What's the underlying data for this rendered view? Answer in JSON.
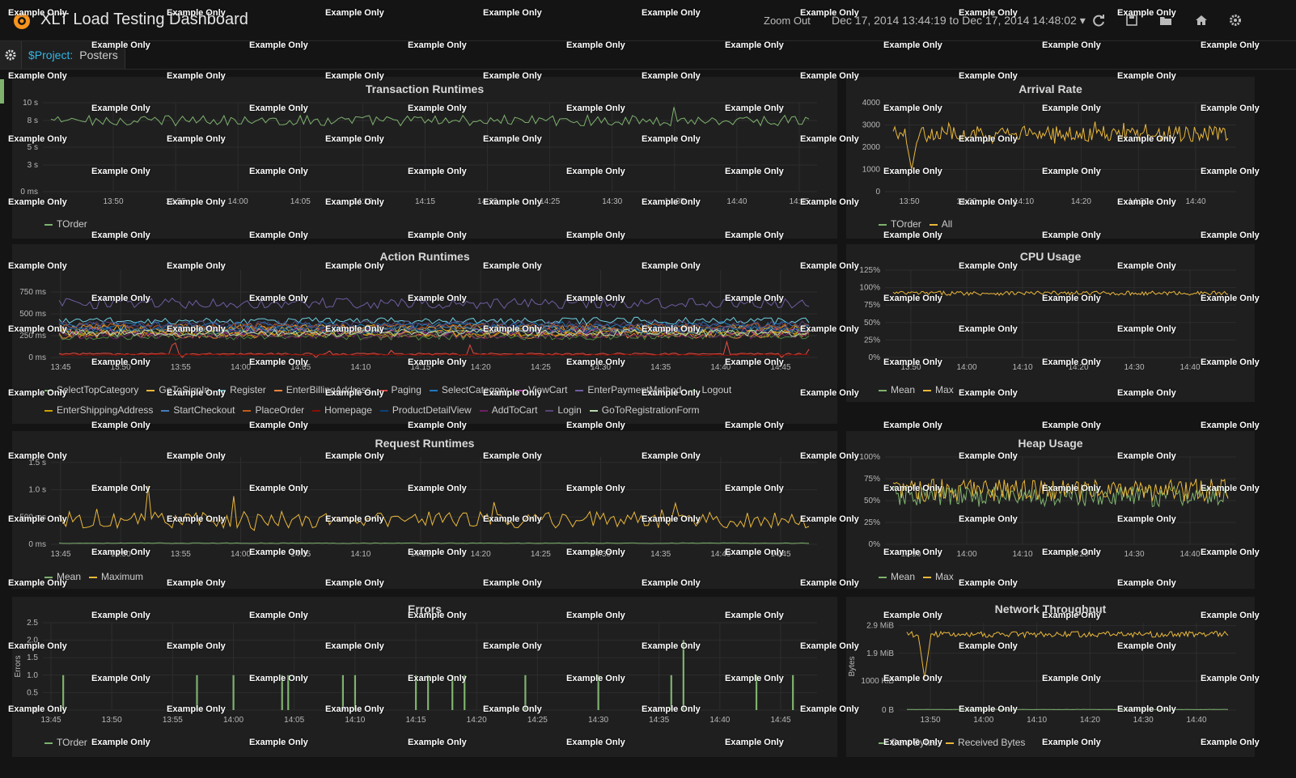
{
  "header": {
    "title": "XLT Load Testing Dashboard",
    "zoom_out": "Zoom Out",
    "time_range": "Dec 17, 2014 13:44:19 to Dec 17, 2014 14:48:02",
    "icons": [
      "refresh-icon",
      "save-icon",
      "open-folder-icon",
      "home-icon",
      "settings-icon"
    ]
  },
  "templating": {
    "var_name": "$Project:",
    "var_value": "Posters"
  },
  "watermark": "Example Only",
  "colors": {
    "green": "#7eb26d",
    "yellow": "#eab839",
    "cyan": "#6ed0e0",
    "orange": "#ef843c",
    "red": "#e24d42",
    "blue": "#1f78c1",
    "pink": "#ba43a9",
    "violet": "#705da0",
    "lime": "#508642",
    "gold": "#cca300",
    "darkblue": "#447ebc",
    "rust": "#c15c17",
    "darkred": "#890f02",
    "navy": "#0a437c",
    "purple": "#6d1f62",
    "indigo": "#584477",
    "lightgreen": "#b7dbab"
  },
  "panels": {
    "transaction_runtimes": {
      "title": "Transaction Runtimes"
    },
    "arrival_rate": {
      "title": "Arrival Rate"
    },
    "action_runtimes": {
      "title": "Action Runtimes"
    },
    "cpu_usage": {
      "title": "CPU Usage"
    },
    "request_runtimes": {
      "title": "Request Runtimes"
    },
    "heap_usage": {
      "title": "Heap Usage"
    },
    "errors": {
      "title": "Errors"
    },
    "network_throughput": {
      "title": "Network Throughput"
    }
  },
  "chart_data": [
    {
      "id": "transaction_runtimes",
      "type": "line",
      "title": "Transaction Runtimes",
      "x_ticks": [
        "13:50",
        "13:55",
        "14:00",
        "14:05",
        "14:10",
        "14:15",
        "14:20",
        "14:25",
        "14:30",
        "14:35",
        "14:40",
        "14:45"
      ],
      "y_ticks": [
        "0 ms",
        "3 s",
        "5 s",
        "8 s",
        "10 s"
      ],
      "ylim": [
        0,
        10
      ],
      "series": [
        {
          "name": "TOrder",
          "color": "#7eb26d",
          "mean": 8,
          "noise": 0.6,
          "spikes": 0.7
        }
      ],
      "legend": [
        {
          "name": "TOrder",
          "color": "#7eb26d"
        }
      ]
    },
    {
      "id": "arrival_rate",
      "type": "line",
      "title": "Arrival Rate",
      "x_ticks": [
        "13:50",
        "14:00",
        "14:10",
        "14:20",
        "14:30",
        "14:40"
      ],
      "y_ticks": [
        "0",
        "1000",
        "2000",
        "3000",
        "4000"
      ],
      "ylim": [
        0,
        4000
      ],
      "series": [
        {
          "name": "All",
          "color": "#eab839",
          "mean": 2600,
          "noise": 350,
          "spikes": 250,
          "dip": 1000
        }
      ],
      "legend": [
        {
          "name": "TOrder",
          "color": "#7eb26d"
        },
        {
          "name": "All",
          "color": "#eab839"
        }
      ]
    },
    {
      "id": "action_runtimes",
      "type": "line",
      "title": "Action Runtimes",
      "x_ticks": [
        "13:45",
        "13:50",
        "13:55",
        "14:00",
        "14:05",
        "14:10",
        "14:15",
        "14:20",
        "14:25",
        "14:30",
        "14:35",
        "14:40",
        "14:45"
      ],
      "y_ticks": [
        "0 ms",
        "250 ms",
        "500 ms",
        "750 ms"
      ],
      "ylim": [
        0,
        1000
      ],
      "series": [
        {
          "name": "SelectTopCategory",
          "color": "#7eb26d",
          "mean": 300,
          "noise": 40
        },
        {
          "name": "GoToSignIn",
          "color": "#eab839",
          "mean": 330,
          "noise": 50
        },
        {
          "name": "Register",
          "color": "#6ed0e0",
          "mean": 420,
          "noise": 40
        },
        {
          "name": "EnterBillingAddress",
          "color": "#ef843c",
          "mean": 260,
          "noise": 40
        },
        {
          "name": "Paging",
          "color": "#e24d42",
          "mean": 40,
          "noise": 10,
          "spikes": 150
        },
        {
          "name": "SelectCategory",
          "color": "#1f78c1",
          "mean": 370,
          "noise": 40
        },
        {
          "name": "ViewCart",
          "color": "#ba43a9",
          "mean": 300,
          "noise": 40
        },
        {
          "name": "EnterPaymentMethod",
          "color": "#705da0",
          "mean": 620,
          "noise": 60
        },
        {
          "name": "Logout",
          "color": "#508642",
          "mean": 240,
          "noise": 40
        },
        {
          "name": "EnterShippingAddress",
          "color": "#cca300",
          "mean": 280,
          "noise": 40
        },
        {
          "name": "StartCheckout",
          "color": "#447ebc",
          "mean": 330,
          "noise": 40
        },
        {
          "name": "PlaceOrder",
          "color": "#c15c17",
          "mean": 350,
          "noise": 40
        },
        {
          "name": "Homepage",
          "color": "#890f02",
          "mean": 30,
          "noise": 8
        },
        {
          "name": "ProductDetailView",
          "color": "#0a437c",
          "mean": 310,
          "noise": 40
        },
        {
          "name": "AddToCart",
          "color": "#6d1f62",
          "mean": 250,
          "noise": 40
        },
        {
          "name": "Login",
          "color": "#584477",
          "mean": 380,
          "noise": 40
        },
        {
          "name": "GoToRegistrationForm",
          "color": "#b7dbab",
          "mean": 280,
          "noise": 40
        }
      ],
      "legend_rows": [
        [
          "SelectTopCategory",
          "GoToSignIn",
          "Register",
          "EnterBillingAddress",
          "Paging",
          "SelectCategory",
          "ViewCart",
          "EnterPaymentMethod",
          "Logout"
        ],
        [
          "EnterShippingAddress",
          "StartCheckout",
          "PlaceOrder",
          "Homepage",
          "ProductDetailView",
          "AddToCart",
          "Login",
          "GoToRegistrationForm"
        ]
      ]
    },
    {
      "id": "cpu_usage",
      "type": "line",
      "title": "CPU Usage",
      "x_ticks": [
        "13:50",
        "14:00",
        "14:10",
        "14:20",
        "14:30",
        "14:40"
      ],
      "y_ticks": [
        "0%",
        "25%",
        "50%",
        "75%",
        "100%",
        "125%"
      ],
      "ylim": [
        0,
        125
      ],
      "series": [
        {
          "name": "Max",
          "color": "#eab839",
          "mean": 92,
          "noise": 3
        }
      ],
      "legend": [
        {
          "name": "Mean",
          "color": "#7eb26d"
        },
        {
          "name": "Max",
          "color": "#eab839"
        }
      ]
    },
    {
      "id": "request_runtimes",
      "type": "line",
      "title": "Request Runtimes",
      "x_ticks": [
        "13:45",
        "13:50",
        "13:55",
        "14:00",
        "14:05",
        "14:10",
        "14:15",
        "14:20",
        "14:25",
        "14:30",
        "14:35",
        "14:40",
        "14:45"
      ],
      "y_ticks": [
        "0 ms",
        "500 ms",
        "1.0 s",
        "1.5 s"
      ],
      "ylim": [
        0,
        1.6
      ],
      "series": [
        {
          "name": "Mean",
          "color": "#7eb26d",
          "mean": 0.02,
          "noise": 0.005
        },
        {
          "name": "Maximum",
          "color": "#eab839",
          "mean": 0.45,
          "noise": 0.15,
          "spikes": 0.35
        }
      ],
      "legend": [
        {
          "name": "Mean",
          "color": "#7eb26d"
        },
        {
          "name": "Maximum",
          "color": "#eab839"
        }
      ]
    },
    {
      "id": "heap_usage",
      "type": "line",
      "title": "Heap Usage",
      "x_ticks": [
        "13:50",
        "14:00",
        "14:10",
        "14:20",
        "14:30",
        "14:40"
      ],
      "y_ticks": [
        "0%",
        "25%",
        "50%",
        "75%",
        "100%"
      ],
      "ylim": [
        0,
        100
      ],
      "series": [
        {
          "name": "Mean",
          "color": "#7eb26d",
          "mean": 55,
          "noise": 12
        },
        {
          "name": "Max",
          "color": "#eab839",
          "mean": 62,
          "noise": 13
        }
      ],
      "legend": [
        {
          "name": "Mean",
          "color": "#7eb26d"
        },
        {
          "name": "Max",
          "color": "#eab839"
        }
      ]
    },
    {
      "id": "errors",
      "type": "bar",
      "title": "Errors",
      "ylabel": "Errors",
      "x_ticks": [
        "13:45",
        "13:50",
        "13:55",
        "14:00",
        "14:05",
        "14:10",
        "14:15",
        "14:20",
        "14:25",
        "14:30",
        "14:35",
        "14:40",
        "14:45"
      ],
      "y_ticks": [
        "0",
        "0.5",
        "1.0",
        "1.5",
        "2.0",
        "2.5"
      ],
      "ylim": [
        0,
        2.5
      ],
      "bars": [
        {
          "t": "13:46",
          "v": 1
        },
        {
          "t": "13:57",
          "v": 1
        },
        {
          "t": "14:00",
          "v": 1
        },
        {
          "t": "14:04",
          "v": 1
        },
        {
          "t": "14:04.5",
          "v": 1
        },
        {
          "t": "14:09",
          "v": 1
        },
        {
          "t": "14:10",
          "v": 1
        },
        {
          "t": "14:15",
          "v": 1
        },
        {
          "t": "14:16",
          "v": 1
        },
        {
          "t": "14:18",
          "v": 1
        },
        {
          "t": "14:19",
          "v": 1
        },
        {
          "t": "14:24",
          "v": 1
        },
        {
          "t": "14:30",
          "v": 1
        },
        {
          "t": "14:36",
          "v": 1
        },
        {
          "t": "14:37",
          "v": 2
        },
        {
          "t": "14:43",
          "v": 1
        },
        {
          "t": "14:46",
          "v": 1
        }
      ],
      "legend": [
        {
          "name": "TOrder",
          "color": "#7eb26d"
        }
      ]
    },
    {
      "id": "network_throughput",
      "type": "line",
      "title": "Network Throughput",
      "ylabel": "Bytes",
      "x_ticks": [
        "13:50",
        "14:00",
        "14:10",
        "14:20",
        "14:30",
        "14:40"
      ],
      "y_ticks": [
        "0 B",
        "1000 KiB",
        "1.9 MiB",
        "2.9 MiB"
      ],
      "ylim": [
        0,
        3.0
      ],
      "series": [
        {
          "name": "Sent Bytes",
          "color": "#7eb26d",
          "mean": 0.02,
          "noise": 0.005
        },
        {
          "name": "Received Bytes",
          "color": "#eab839",
          "mean": 2.6,
          "noise": 0.1,
          "dip": 1.1
        }
      ],
      "legend": [
        {
          "name": "Sent Bytes",
          "color": "#7eb26d"
        },
        {
          "name": "Received Bytes",
          "color": "#eab839"
        }
      ]
    }
  ]
}
